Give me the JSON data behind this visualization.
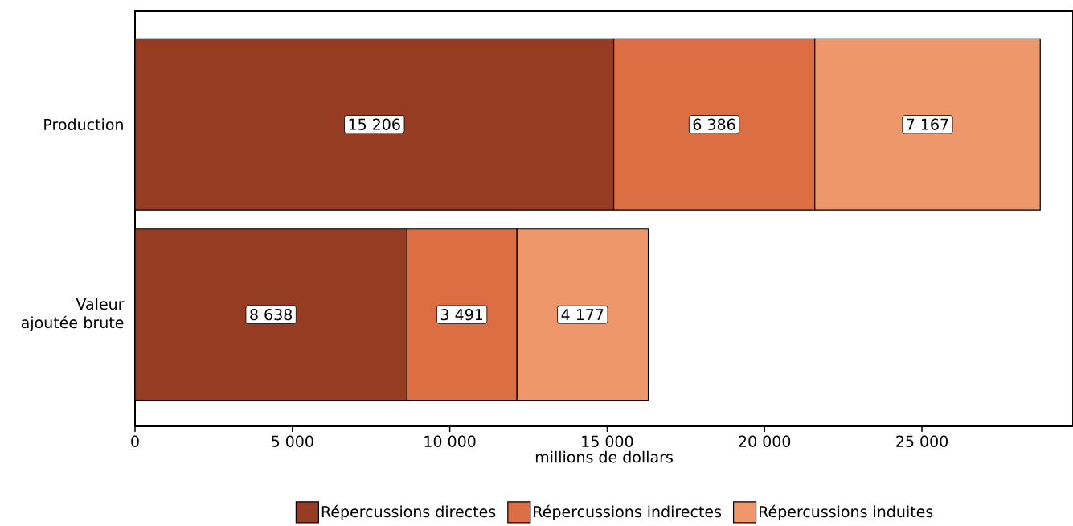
{
  "chart_data": {
    "type": "bar",
    "orientation": "horizontal",
    "stacked": true,
    "xlabel": "millions de dollars",
    "categories": [
      "Production",
      "Valeur ajoutée brute"
    ],
    "series": [
      {
        "name": "Répercussions directes",
        "color": "#963c22",
        "values": [
          15206,
          8638
        ],
        "value_labels": [
          "15 206",
          "8 638"
        ]
      },
      {
        "name": "Répercussions indirectes",
        "color": "#dc6e44",
        "values": [
          6386,
          3491
        ],
        "value_labels": [
          "6 386",
          "3 491"
        ]
      },
      {
        "name": "Répercussions induites",
        "color": "#ee976b",
        "values": [
          7167,
          4177
        ],
        "value_labels": [
          "7 167",
          "4 177"
        ]
      }
    ],
    "xlim": [
      0,
      29800
    ],
    "xticks": [
      0,
      {
        "value": 5000,
        "label": "5 000"
      },
      {
        "value": 10000,
        "label": "10 000"
      },
      {
        "value": 15000,
        "label": "15 000"
      },
      {
        "value": 20000,
        "label": "20 000"
      },
      {
        "value": 25000,
        "label": "25 000"
      }
    ],
    "grid": false,
    "legend": "bottom"
  }
}
